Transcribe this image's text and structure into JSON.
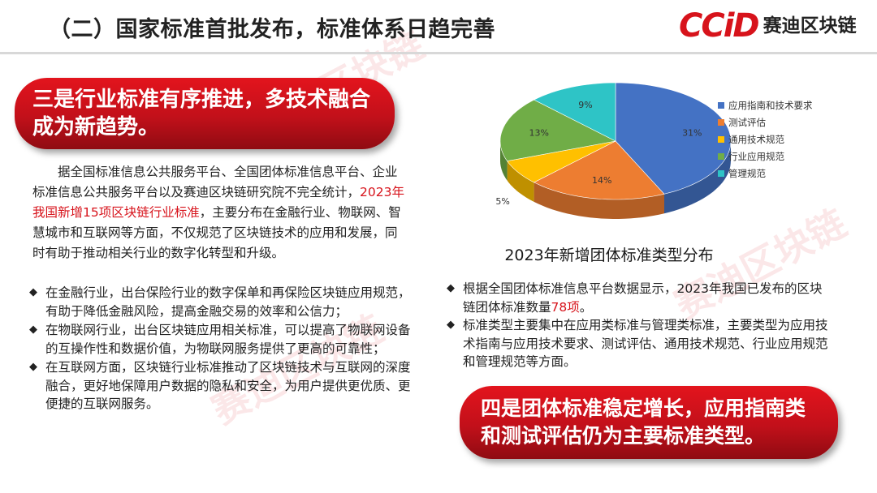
{
  "header": {
    "title": "（二）国家标准首批发布，标准体系日趋完善",
    "logo_mark": "CCiD",
    "logo_text": "赛迪区块链"
  },
  "left": {
    "banner": "三是行业标准有序推进，多技术融合成为新趋势。",
    "intro_pre": "据全国标准信息公共服务平台、全国团体标准信息平台、企业标准信息公共服务平台以及赛迪区块链研究院不完全统计，",
    "intro_highlight": "2023年我国新增15项区块链行业标准",
    "intro_post": "，主要分布在金融行业、物联网、智慧城市和互联网等方面，不仅规范了区块链技术的应用和发展，同时有助于推动相关行业的数字化转型和升级。",
    "bullet_symbol": "◆",
    "bullets": [
      "在金融行业，出台保险行业的数字保单和再保险区块链应用规范，有助于降低金融风险，提高金融交易的效率和公信力；",
      "在物联网行业，出台区块链应用相关标准，可以提高了物联网设备的互操作性和数据价值，为物联网服务提供了更高的可靠性；",
      "在互联网方面，区块链行业标准推动了区块链技术与互联网的深度融合，更好地保障用户数据的隐私和安全，为用户提供更优质、更便捷的互联网服务。"
    ]
  },
  "right": {
    "caption": "2023年新增团体标准类型分布",
    "bullet1_pre": "根据全国团体标准信息平台数据显示，2023年我国已发布的区块链团体标准数量",
    "bullet1_highlight": "78项",
    "bullet1_post": "。",
    "bullet2": "标准类型主要集中在应用类标准与管理类标准，主要类型为应用技术指南与应用技术要求、测试评估、通用技术规范、行业应用规范和管理规范等方面。",
    "banner": "四是团体标准稳定增长，应用指南类和测试评估仍为主要标准类型。"
  },
  "watermark_text": "赛迪区块链",
  "chart_data": {
    "type": "pie",
    "title": "2023年新增团体标准类型分布",
    "categories": [
      "应用指南和技术要求",
      "测试评估",
      "通用技术规范",
      "行业应用规范",
      "管理规范"
    ],
    "values": [
      31,
      14,
      5,
      13,
      9
    ],
    "value_labels": [
      "31%",
      "14%",
      "5%",
      "13%",
      "9%"
    ],
    "colors": [
      "#4472c4",
      "#ed7d31",
      "#ffc000",
      "#70ad47",
      "#2ec4c6"
    ],
    "legend_position": "right",
    "style": "3d"
  }
}
